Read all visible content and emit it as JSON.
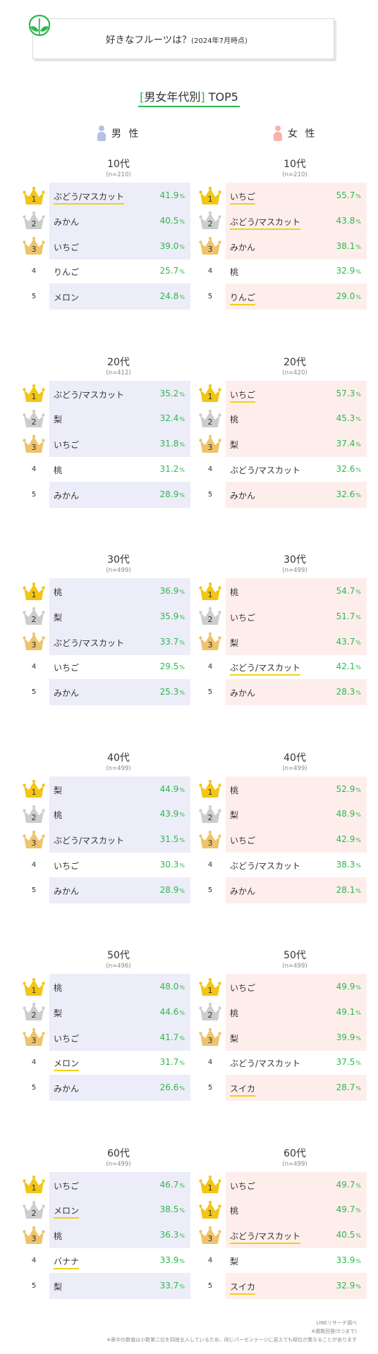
{
  "header": {
    "title": "好きなフルーツは？",
    "subtitle": "(2024年7月時点)"
  },
  "section_title": {
    "open": "[",
    "text": "男女年代別",
    "close": "]",
    "suffix": " TOP5"
  },
  "genders": {
    "male": "男 性",
    "female": "女 性"
  },
  "colors": {
    "accent_green": "#2db84d",
    "male_row": "#ecedf8",
    "female_row": "#fdeeec",
    "underline": "#f2cf1a",
    "gold": "#f3c515",
    "silver": "#cdcdcd",
    "bronze": "#eec36a",
    "male_icon": "#b4c2e8",
    "female_icon": "#f5b5aa"
  },
  "chart_data": [
    {
      "type": "table",
      "group": "男性",
      "age": "10代",
      "n": "(n=210)",
      "items": [
        {
          "rank": "1",
          "name": "ぶどう/マスカット",
          "value": 41.9,
          "label": "41.9",
          "unit": "%",
          "underline": true
        },
        {
          "rank": "2",
          "name": "みかん",
          "value": 40.5,
          "label": "40.5",
          "unit": "%",
          "underline": false
        },
        {
          "rank": "3",
          "name": "いちご",
          "value": 39.0,
          "label": "39.0",
          "unit": "%",
          "underline": false
        },
        {
          "rank": "4",
          "name": "りんご",
          "value": 25.7,
          "label": "25.7",
          "unit": "%",
          "underline": false
        },
        {
          "rank": "5",
          "name": "メロン",
          "value": 24.8,
          "label": "24.8",
          "unit": "%",
          "underline": false
        }
      ]
    },
    {
      "type": "table",
      "group": "女性",
      "age": "10代",
      "n": "(n=210)",
      "items": [
        {
          "rank": "1",
          "name": "いちご",
          "value": 55.7,
          "label": "55.7",
          "unit": "%",
          "underline": true
        },
        {
          "rank": "2",
          "name": "ぶどう/マスカット",
          "value": 43.8,
          "label": "43.8",
          "unit": "%",
          "underline": true
        },
        {
          "rank": "3",
          "name": "みかん",
          "value": 38.1,
          "label": "38.1",
          "unit": "%",
          "underline": false
        },
        {
          "rank": "4",
          "name": "桃",
          "value": 32.9,
          "label": "32.9",
          "unit": "%",
          "underline": false
        },
        {
          "rank": "5",
          "name": "りんご",
          "value": 29.0,
          "label": "29.0",
          "unit": "%",
          "underline": true
        }
      ]
    },
    {
      "type": "table",
      "group": "男性",
      "age": "20代",
      "n": "(n=412)",
      "items": [
        {
          "rank": "1",
          "name": "ぶどう/マスカット",
          "value": 35.2,
          "label": "35.2",
          "unit": "%",
          "underline": false
        },
        {
          "rank": "2",
          "name": "梨",
          "value": 32.4,
          "label": "32.4",
          "unit": "%",
          "underline": false
        },
        {
          "rank": "3",
          "name": "いちご",
          "value": 31.8,
          "label": "31.8",
          "unit": "%",
          "underline": false
        },
        {
          "rank": "4",
          "name": "桃",
          "value": 31.2,
          "label": "31.2",
          "unit": "%",
          "underline": false
        },
        {
          "rank": "5",
          "name": "みかん",
          "value": 28.9,
          "label": "28.9",
          "unit": "%",
          "underline": false
        }
      ]
    },
    {
      "type": "table",
      "group": "女性",
      "age": "20代",
      "n": "(n=420)",
      "items": [
        {
          "rank": "1",
          "name": "いちご",
          "value": 57.3,
          "label": "57.3",
          "unit": "%",
          "underline": true
        },
        {
          "rank": "2",
          "name": "桃",
          "value": 45.3,
          "label": "45.3",
          "unit": "%",
          "underline": false
        },
        {
          "rank": "3",
          "name": "梨",
          "value": 37.4,
          "label": "37.4",
          "unit": "%",
          "underline": false
        },
        {
          "rank": "4",
          "name": "ぶどう/マスカット",
          "value": 32.6,
          "label": "32.6",
          "unit": "%",
          "underline": false
        },
        {
          "rank": "5",
          "name": "みかん",
          "value": 32.6,
          "label": "32.6",
          "unit": "%",
          "underline": false
        }
      ]
    },
    {
      "type": "table",
      "group": "男性",
      "age": "30代",
      "n": "(n=499)",
      "items": [
        {
          "rank": "1",
          "name": "桃",
          "value": 36.9,
          "label": "36.9",
          "unit": "%",
          "underline": false
        },
        {
          "rank": "2",
          "name": "梨",
          "value": 35.9,
          "label": "35.9",
          "unit": "%",
          "underline": false
        },
        {
          "rank": "3",
          "name": "ぶどう/マスカット",
          "value": 33.7,
          "label": "33.7",
          "unit": "%",
          "underline": false
        },
        {
          "rank": "4",
          "name": "いちご",
          "value": 29.5,
          "label": "29.5",
          "unit": "%",
          "underline": false
        },
        {
          "rank": "5",
          "name": "みかん",
          "value": 25.3,
          "label": "25.3",
          "unit": "%",
          "underline": false
        }
      ]
    },
    {
      "type": "table",
      "group": "女性",
      "age": "30代",
      "n": "(n=499)",
      "items": [
        {
          "rank": "1",
          "name": "桃",
          "value": 54.7,
          "label": "54.7",
          "unit": "%",
          "underline": false
        },
        {
          "rank": "2",
          "name": "いちご",
          "value": 51.7,
          "label": "51.7",
          "unit": "%",
          "underline": false
        },
        {
          "rank": "3",
          "name": "梨",
          "value": 43.7,
          "label": "43.7",
          "unit": "%",
          "underline": false
        },
        {
          "rank": "4",
          "name": "ぶどう/マスカット",
          "value": 42.1,
          "label": "42.1",
          "unit": "%",
          "underline": true
        },
        {
          "rank": "5",
          "name": "みかん",
          "value": 28.3,
          "label": "28.3",
          "unit": "%",
          "underline": false
        }
      ]
    },
    {
      "type": "table",
      "group": "男性",
      "age": "40代",
      "n": "(n=499)",
      "items": [
        {
          "rank": "1",
          "name": "梨",
          "value": 44.9,
          "label": "44.9",
          "unit": "%",
          "underline": false
        },
        {
          "rank": "2",
          "name": "桃",
          "value": 43.9,
          "label": "43.9",
          "unit": "%",
          "underline": false
        },
        {
          "rank": "3",
          "name": "ぶどう/マスカット",
          "value": 31.5,
          "label": "31.5",
          "unit": "%",
          "underline": false
        },
        {
          "rank": "4",
          "name": "いちご",
          "value": 30.3,
          "label": "30.3",
          "unit": "%",
          "underline": false
        },
        {
          "rank": "5",
          "name": "みかん",
          "value": 28.9,
          "label": "28.9",
          "unit": "%",
          "underline": false
        }
      ]
    },
    {
      "type": "table",
      "group": "女性",
      "age": "40代",
      "n": "(n=499)",
      "items": [
        {
          "rank": "1",
          "name": "桃",
          "value": 52.9,
          "label": "52.9",
          "unit": "%",
          "underline": false
        },
        {
          "rank": "2",
          "name": "梨",
          "value": 48.9,
          "label": "48.9",
          "unit": "%",
          "underline": false
        },
        {
          "rank": "3",
          "name": "いちご",
          "value": 42.9,
          "label": "42.9",
          "unit": "%",
          "underline": false
        },
        {
          "rank": "4",
          "name": "ぶどう/マスカット",
          "value": 38.3,
          "label": "38.3",
          "unit": "%",
          "underline": false
        },
        {
          "rank": "5",
          "name": "みかん",
          "value": 28.1,
          "label": "28.1",
          "unit": "%",
          "underline": false
        }
      ]
    },
    {
      "type": "table",
      "group": "男性",
      "age": "50代",
      "n": "(n=496)",
      "items": [
        {
          "rank": "1",
          "name": "桃",
          "value": 48.0,
          "label": "48.0",
          "unit": "%",
          "underline": false
        },
        {
          "rank": "2",
          "name": "梨",
          "value": 44.6,
          "label": "44.6",
          "unit": "%",
          "underline": false
        },
        {
          "rank": "3",
          "name": "いちご",
          "value": 41.7,
          "label": "41.7",
          "unit": "%",
          "underline": false
        },
        {
          "rank": "4",
          "name": "メロン",
          "value": 31.7,
          "label": "31.7",
          "unit": "%",
          "underline": true
        },
        {
          "rank": "5",
          "name": "みかん",
          "value": 26.6,
          "label": "26.6",
          "unit": "%",
          "underline": false
        }
      ]
    },
    {
      "type": "table",
      "group": "女性",
      "age": "50代",
      "n": "(n=499)",
      "items": [
        {
          "rank": "1",
          "name": "いちご",
          "value": 49.9,
          "label": "49.9",
          "unit": "%",
          "underline": false
        },
        {
          "rank": "2",
          "name": "桃",
          "value": 49.1,
          "label": "49.1",
          "unit": "%",
          "underline": false
        },
        {
          "rank": "3",
          "name": "梨",
          "value": 39.9,
          "label": "39.9",
          "unit": "%",
          "underline": false
        },
        {
          "rank": "4",
          "name": "ぶどう/マスカット",
          "value": 37.5,
          "label": "37.5",
          "unit": "%",
          "underline": false
        },
        {
          "rank": "5",
          "name": "スイカ",
          "value": 28.7,
          "label": "28.7",
          "unit": "%",
          "underline": true
        }
      ]
    },
    {
      "type": "table",
      "group": "男性",
      "age": "60代",
      "n": "(n=499)",
      "items": [
        {
          "rank": "1",
          "name": "いちご",
          "value": 46.7,
          "label": "46.7",
          "unit": "%",
          "underline": false
        },
        {
          "rank": "2",
          "name": "メロン",
          "value": 38.5,
          "label": "38.5",
          "unit": "%",
          "underline": true
        },
        {
          "rank": "3",
          "name": "桃",
          "value": 36.3,
          "label": "36.3",
          "unit": "%",
          "underline": false
        },
        {
          "rank": "4",
          "name": "バナナ",
          "value": 33.9,
          "label": "33.9",
          "unit": "%",
          "underline": true
        },
        {
          "rank": "5",
          "name": "梨",
          "value": 33.7,
          "label": "33.7",
          "unit": "%",
          "underline": false
        }
      ]
    },
    {
      "type": "table",
      "group": "女性",
      "age": "60代",
      "n": "(n=499)",
      "items": [
        {
          "rank": "1",
          "name": "いちご",
          "value": 49.7,
          "label": "49.7",
          "unit": "%",
          "underline": false
        },
        {
          "rank": "1",
          "name": "桃",
          "value": 49.7,
          "label": "49.7",
          "unit": "%",
          "underline": false
        },
        {
          "rank": "3",
          "name": "ぶどう/マスカット",
          "value": 40.5,
          "label": "40.5",
          "unit": "%",
          "underline": true
        },
        {
          "rank": "4",
          "name": "梨",
          "value": 33.9,
          "label": "33.9",
          "unit": "%",
          "underline": false
        },
        {
          "rank": "5",
          "name": "スイカ",
          "value": 32.9,
          "label": "32.9",
          "unit": "%",
          "underline": true
        }
      ]
    }
  ],
  "footer": {
    "source": "LINEリサーチ調べ",
    "note1": "※複数回答(5つまで)",
    "note2": "※表中の数値は小数第二位を四捨五入しているため、同じパーセンテージに見えても順位が異なることがあります"
  }
}
